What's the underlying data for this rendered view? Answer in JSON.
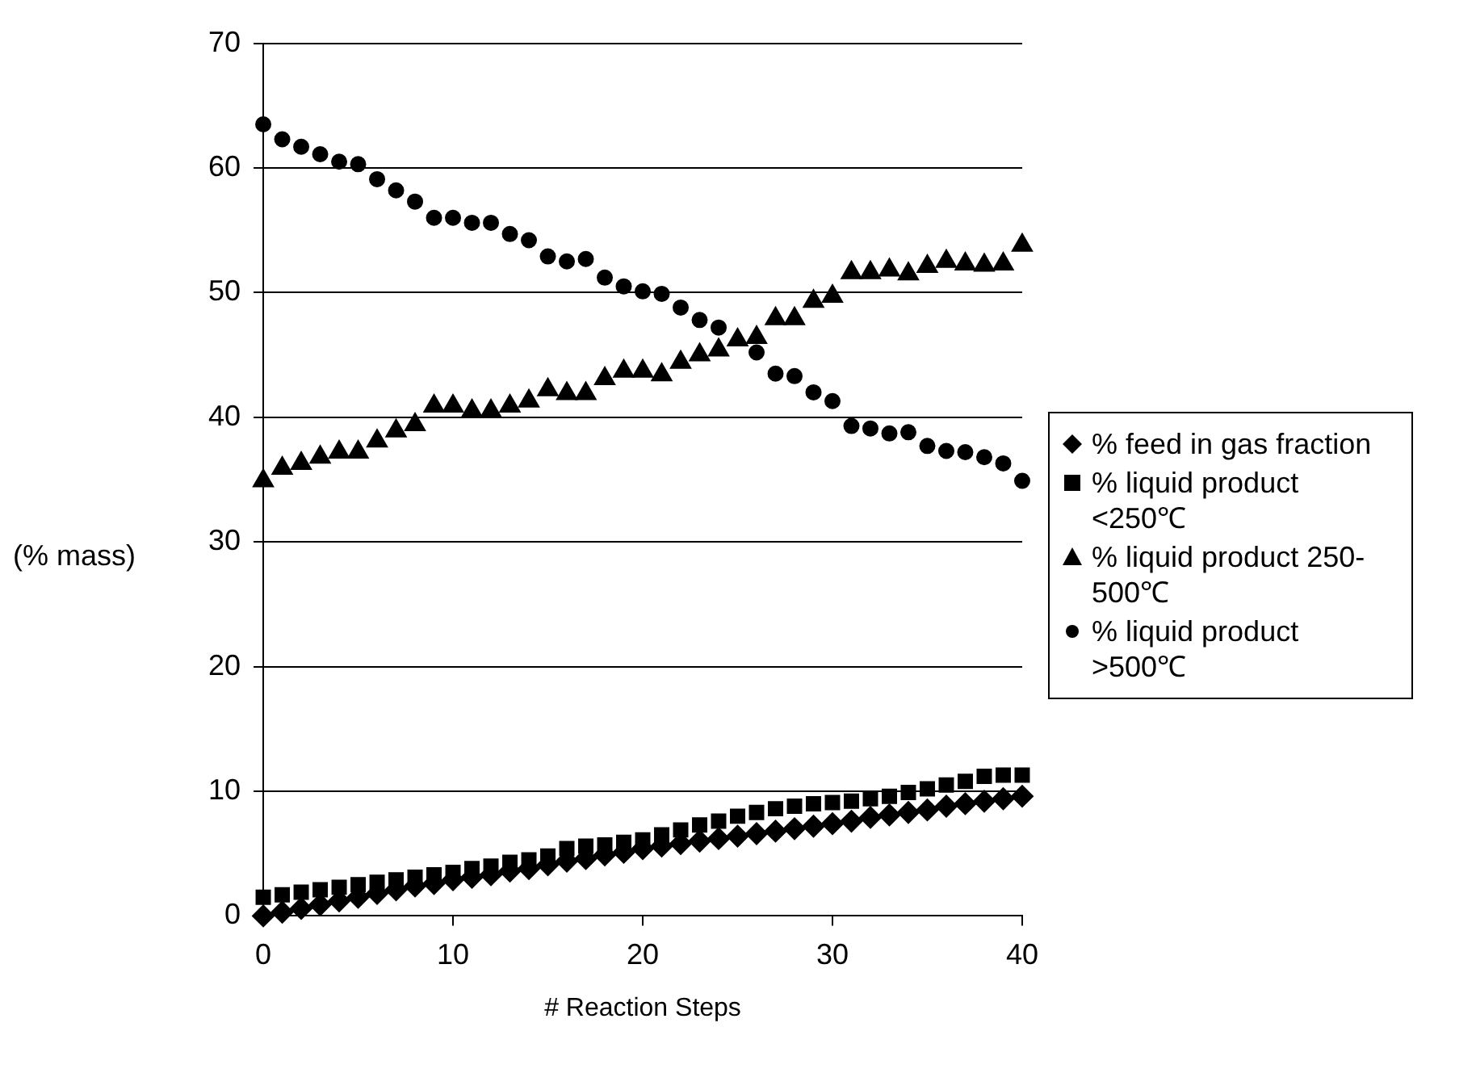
{
  "chart_data": {
    "type": "scatter",
    "xlabel": "# Reaction Steps",
    "ylabel": "(% mass)",
    "x": [
      0,
      1,
      2,
      3,
      4,
      5,
      6,
      7,
      8,
      9,
      10,
      11,
      12,
      13,
      14,
      15,
      16,
      17,
      18,
      19,
      20,
      21,
      22,
      23,
      24,
      25,
      26,
      27,
      28,
      29,
      30,
      31,
      32,
      33,
      34,
      35,
      36,
      37,
      38,
      39,
      40
    ],
    "series": [
      {
        "name": "% feed in gas fraction",
        "color": "#000000",
        "marker": "diamond",
        "values": [
          0,
          0.3,
          0.6,
          0.9,
          1.2,
          1.5,
          1.8,
          2.1,
          2.4,
          2.6,
          2.9,
          3.1,
          3.3,
          3.6,
          3.8,
          4.1,
          4.4,
          4.6,
          4.9,
          5.1,
          5.4,
          5.6,
          5.8,
          6.0,
          6.2,
          6.4,
          6.6,
          6.8,
          7.0,
          7.2,
          7.4,
          7.6,
          7.9,
          8.1,
          8.3,
          8.5,
          8.8,
          9.0,
          9.2,
          9.4,
          9.6
        ]
      },
      {
        "name": "% liquid product <250℃",
        "color": "#000000",
        "marker": "square",
        "values": [
          1.5,
          1.7,
          1.9,
          2.1,
          2.3,
          2.5,
          2.7,
          2.9,
          3.1,
          3.3,
          3.5,
          3.8,
          4.0,
          4.3,
          4.5,
          4.8,
          5.4,
          5.6,
          5.7,
          5.9,
          6.1,
          6.5,
          6.9,
          7.3,
          7.6,
          8.0,
          8.3,
          8.6,
          8.8,
          9.0,
          9.1,
          9.2,
          9.4,
          9.6,
          9.9,
          10.2,
          10.5,
          10.8,
          11.2,
          11.3,
          11.3
        ]
      },
      {
        "name": "% liquid product 250-500℃",
        "color": "#000000",
        "marker": "triangle",
        "values": [
          34.9,
          35.9,
          36.3,
          36.8,
          37.2,
          37.2,
          38.1,
          38.9,
          39.4,
          40.9,
          40.9,
          40.5,
          40.5,
          40.9,
          41.3,
          42.2,
          41.9,
          41.9,
          43.1,
          43.7,
          43.7,
          43.4,
          44.4,
          45.0,
          45.4,
          46.2,
          46.4,
          47.9,
          47.9,
          49.3,
          49.7,
          51.6,
          51.6,
          51.8,
          51.5,
          52.1,
          52.5,
          52.3,
          52.2,
          52.3,
          53.8
        ]
      },
      {
        "name": "% liquid product >500℃",
        "color": "#000000",
        "marker": "circle",
        "values": [
          63.5,
          62.3,
          61.7,
          61.1,
          60.5,
          60.3,
          59.1,
          58.2,
          57.3,
          56.0,
          56.0,
          55.6,
          55.6,
          54.7,
          54.2,
          52.9,
          52.5,
          52.7,
          51.2,
          50.5,
          50.1,
          49.9,
          48.8,
          47.8,
          47.2,
          null,
          45.2,
          43.5,
          43.3,
          42.0,
          41.3,
          39.3,
          39.1,
          38.7,
          38.8,
          37.7,
          37.3,
          37.2,
          36.8,
          36.3,
          34.9
        ]
      }
    ],
    "xlim": [
      0,
      40
    ],
    "xticks": [
      0,
      10,
      20,
      30,
      40
    ],
    "ylim": [
      0,
      70
    ],
    "yticks": [
      0,
      10,
      20,
      30,
      40,
      50,
      60,
      70
    ],
    "grid": "y",
    "legend": "right"
  }
}
